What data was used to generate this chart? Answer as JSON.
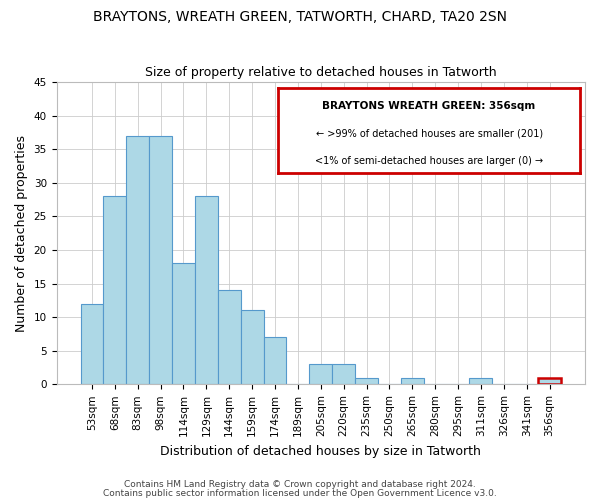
{
  "title": "BRAYTONS, WREATH GREEN, TATWORTH, CHARD, TA20 2SN",
  "subtitle": "Size of property relative to detached houses in Tatworth",
  "xlabel": "Distribution of detached houses by size in Tatworth",
  "ylabel": "Number of detached properties",
  "bar_labels": [
    "53sqm",
    "68sqm",
    "83sqm",
    "98sqm",
    "114sqm",
    "129sqm",
    "144sqm",
    "159sqm",
    "174sqm",
    "189sqm",
    "205sqm",
    "220sqm",
    "235sqm",
    "250sqm",
    "265sqm",
    "280sqm",
    "295sqm",
    "311sqm",
    "326sqm",
    "341sqm",
    "356sqm"
  ],
  "bar_values": [
    12,
    28,
    37,
    37,
    18,
    28,
    14,
    11,
    7,
    0,
    3,
    3,
    1,
    0,
    1,
    0,
    0,
    1,
    0,
    0,
    1
  ],
  "bar_color": "#add8e6",
  "bar_edge_color": "#5599cc",
  "grid_color": "#cccccc",
  "ylim": [
    0,
    45
  ],
  "yticks": [
    0,
    5,
    10,
    15,
    20,
    25,
    30,
    35,
    40,
    45
  ],
  "legend_title": "BRAYTONS WREATH GREEN: 356sqm",
  "legend_line1": "← >99% of detached houses are smaller (201)",
  "legend_line2": "<1% of semi-detached houses are larger (0) →",
  "legend_box_color": "#ffffff",
  "legend_box_edge": "#cc0000",
  "highlight_bar_index": 20,
  "highlight_bar_edge": "#cc0000",
  "footer_line1": "Contains HM Land Registry data © Crown copyright and database right 2024.",
  "footer_line2": "Contains public sector information licensed under the Open Government Licence v3.0.",
  "title_fontsize": 10,
  "subtitle_fontsize": 9,
  "axis_label_fontsize": 9,
  "tick_fontsize": 7.5,
  "footer_fontsize": 6.5
}
